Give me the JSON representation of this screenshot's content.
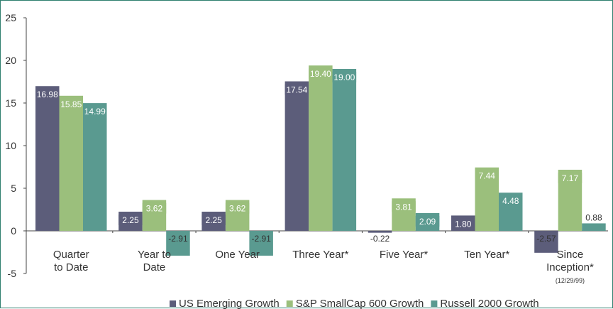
{
  "chart_data": {
    "type": "bar",
    "ylim": [
      -5,
      25
    ],
    "yticks": [
      25,
      20,
      15,
      10,
      5,
      0,
      -5
    ],
    "categories": [
      {
        "lines": [
          "Quarter",
          "to Date"
        ],
        "sub": ""
      },
      {
        "lines": [
          "Year to",
          "Date"
        ],
        "sub": ""
      },
      {
        "lines": [
          "One Year"
        ],
        "sub": ""
      },
      {
        "lines": [
          "Three Year*"
        ],
        "sub": ""
      },
      {
        "lines": [
          "Five Year*"
        ],
        "sub": ""
      },
      {
        "lines": [
          "Ten Year*"
        ],
        "sub": ""
      },
      {
        "lines": [
          "Since",
          "Inception*"
        ],
        "sub": "(12/29/99)"
      }
    ],
    "series": [
      {
        "name": "US Emerging Growth",
        "color": "#5c5d7a",
        "values": [
          16.98,
          2.25,
          2.25,
          17.54,
          -0.22,
          1.8,
          -2.57
        ],
        "labels": [
          "16.98",
          "2.25",
          "2.25",
          "17.54",
          "-0.22",
          "1.80",
          "-2.57"
        ]
      },
      {
        "name": "S&P SmallCap 600 Growth",
        "color": "#9bbf7c",
        "values": [
          15.85,
          3.62,
          3.62,
          19.4,
          3.81,
          7.44,
          7.17
        ],
        "labels": [
          "15.85",
          "3.62",
          "3.62",
          "19.40",
          "3.81",
          "7.44",
          "7.17"
        ]
      },
      {
        "name": "Russell 2000 Growth",
        "color": "#5a9a90",
        "values": [
          14.99,
          -2.91,
          -2.91,
          19.0,
          2.09,
          4.48,
          0.88
        ],
        "labels": [
          "14.99",
          "-2.91",
          "-2.91",
          "19.00",
          "2.09",
          "4.48",
          "0.88"
        ]
      }
    ],
    "legend_marker": "■"
  }
}
